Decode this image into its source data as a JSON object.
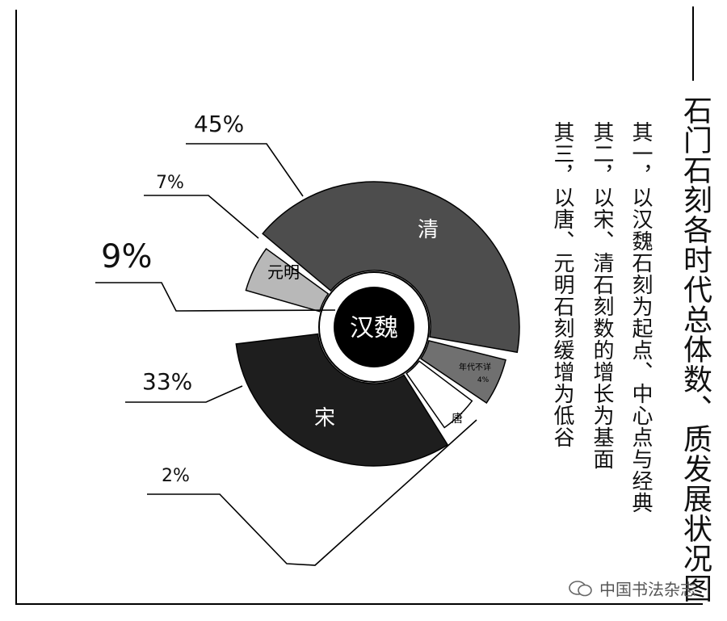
{
  "title": "石门石刻各时代总体数、质发展状况图",
  "subtitles": [
    "其一，以汉魏石刻为起点、中心点与经典",
    "其二，以宋、清石刻数的增长为基面",
    "其三，以唐、元明石刻缓增为低谷"
  ],
  "watermark": "中国书法杂志",
  "colors": {
    "qing": "#4d4d4d",
    "song": "#1e1e1e",
    "yuanming": "#b8b8b8",
    "unknown": "#707070",
    "tang": "#ffffff",
    "center": "#000000"
  },
  "chart_data": {
    "type": "pie",
    "center_label": "汉魏",
    "slices": [
      {
        "label": "清",
        "percent_label": "45%",
        "value": 45
      },
      {
        "label": "年代不详",
        "percent_label": "4%",
        "value": 4
      },
      {
        "label": "唐",
        "percent_label": "2%",
        "value": 2
      },
      {
        "label": "宋",
        "percent_label": "33%",
        "value": 33
      },
      {
        "label": "",
        "percent_label": "9%",
        "value": 9
      },
      {
        "label": "元明",
        "percent_label": "7%",
        "value": 7
      }
    ]
  }
}
